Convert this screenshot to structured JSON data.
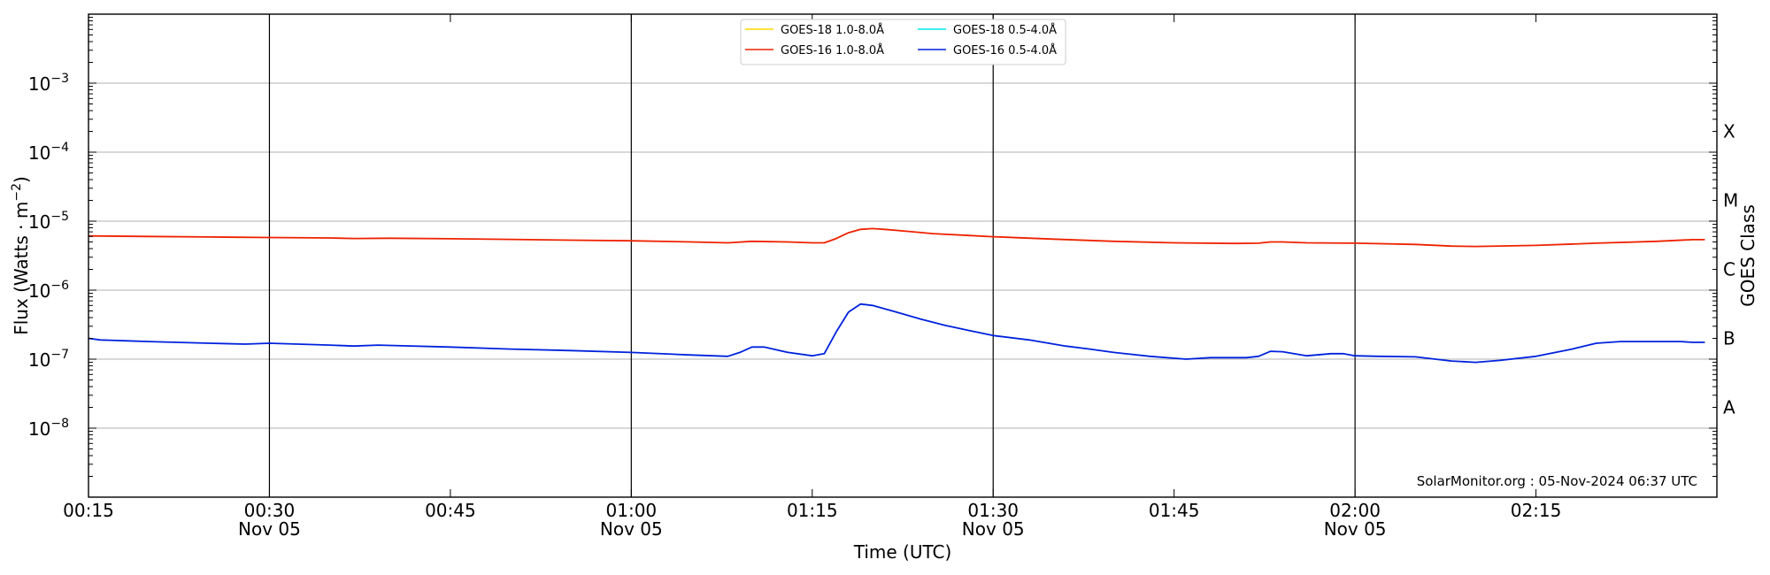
{
  "chart_data": {
    "type": "line",
    "y_scale": "log",
    "ylim": [
      1e-09,
      0.01
    ],
    "xlim": [
      "00:15",
      "02:30"
    ],
    "grid": "horizontal at decades, vertical at half-hours",
    "legend_position": "top-center",
    "xlabel": "Time (UTC)",
    "ylabel_main": "Flux (Watts · m",
    "ylabel_sup": "−2",
    "ylabel_close": ")",
    "right_axis_label": "GOES Class",
    "goes_classes": [
      {
        "label": "X",
        "flux": 0.0002
      },
      {
        "label": "M",
        "flux": 2e-05
      },
      {
        "label": "C",
        "flux": 2e-06
      },
      {
        "label": "B",
        "flux": 2e-07
      },
      {
        "label": "A",
        "flux": 2e-08
      }
    ],
    "y_ticks": [
      {
        "base": "10",
        "exp": "−8",
        "value": 1e-08
      },
      {
        "base": "10",
        "exp": "−7",
        "value": 1e-07
      },
      {
        "base": "10",
        "exp": "−6",
        "value": 1e-06
      },
      {
        "base": "10",
        "exp": "−5",
        "value": 1e-05
      },
      {
        "base": "10",
        "exp": "−4",
        "value": 0.0001
      },
      {
        "base": "10",
        "exp": "−3",
        "value": 0.001
      }
    ],
    "x_ticks": [
      {
        "time": "00:15",
        "label": "00:15",
        "date": ""
      },
      {
        "time": "00:30",
        "label": "00:30",
        "date": "Nov 05"
      },
      {
        "time": "00:45",
        "label": "00:45",
        "date": ""
      },
      {
        "time": "01:00",
        "label": "01:00",
        "date": "Nov 05"
      },
      {
        "time": "01:15",
        "label": "01:15",
        "date": ""
      },
      {
        "time": "01:30",
        "label": "01:30",
        "date": "Nov 05"
      },
      {
        "time": "01:45",
        "label": "01:45",
        "date": ""
      },
      {
        "time": "02:00",
        "label": "02:00",
        "date": "Nov 05"
      },
      {
        "time": "02:15",
        "label": "02:15",
        "date": ""
      }
    ],
    "credit": "SolarMonitor.org : 05-Nov-2024 06:37 UTC",
    "series": [
      {
        "name": "GOES-18 1.0-8.0Å",
        "color": "#ffd700",
        "points": []
      },
      {
        "name": "GOES-18 0.5-4.0Å",
        "color": "#00e5ee",
        "points": []
      },
      {
        "name": "GOES-16 1.0-8.0Å",
        "color": "#ee2200",
        "points": [
          [
            "00:15",
            6.1e-06
          ],
          [
            "00:20",
            6e-06
          ],
          [
            "00:25",
            5.9e-06
          ],
          [
            "00:30",
            5.8e-06
          ],
          [
            "00:35",
            5.7e-06
          ],
          [
            "00:37",
            5.6e-06
          ],
          [
            "00:40",
            5.65e-06
          ],
          [
            "00:45",
            5.55e-06
          ],
          [
            "00:50",
            5.45e-06
          ],
          [
            "00:55",
            5.3e-06
          ],
          [
            "01:00",
            5.2e-06
          ],
          [
            "01:05",
            5e-06
          ],
          [
            "01:08",
            4.85e-06
          ],
          [
            "01:10",
            5.1e-06
          ],
          [
            "01:13",
            5e-06
          ],
          [
            "01:15",
            4.85e-06
          ],
          [
            "01:16",
            4.85e-06
          ],
          [
            "01:17",
            5.6e-06
          ],
          [
            "01:18",
            6.8e-06
          ],
          [
            "01:19",
            7.6e-06
          ],
          [
            "01:20",
            7.8e-06
          ],
          [
            "01:21",
            7.6e-06
          ],
          [
            "01:23",
            7.1e-06
          ],
          [
            "01:25",
            6.6e-06
          ],
          [
            "01:28",
            6.2e-06
          ],
          [
            "01:30",
            5.95e-06
          ],
          [
            "01:35",
            5.5e-06
          ],
          [
            "01:40",
            5.1e-06
          ],
          [
            "01:45",
            4.85e-06
          ],
          [
            "01:50",
            4.75e-06
          ],
          [
            "01:52",
            4.8e-06
          ],
          [
            "01:53",
            5e-06
          ],
          [
            "01:54",
            5e-06
          ],
          [
            "01:56",
            4.85e-06
          ],
          [
            "02:00",
            4.8e-06
          ],
          [
            "02:05",
            4.6e-06
          ],
          [
            "02:08",
            4.35e-06
          ],
          [
            "02:10",
            4.3e-06
          ],
          [
            "02:15",
            4.45e-06
          ],
          [
            "02:20",
            4.8e-06
          ],
          [
            "02:25",
            5.1e-06
          ],
          [
            "02:28",
            5.4e-06
          ],
          [
            "02:29",
            5.4e-06
          ]
        ]
      },
      {
        "name": "GOES-16 0.5-4.0Å",
        "color": "#0022dd",
        "points": [
          [
            "00:15",
            2e-07
          ],
          [
            "00:16",
            1.9e-07
          ],
          [
            "00:18",
            1.85e-07
          ],
          [
            "00:20",
            1.8e-07
          ],
          [
            "00:25",
            1.7e-07
          ],
          [
            "00:28",
            1.65e-07
          ],
          [
            "00:30",
            1.7e-07
          ],
          [
            "00:35",
            1.6e-07
          ],
          [
            "00:37",
            1.55e-07
          ],
          [
            "00:39",
            1.6e-07
          ],
          [
            "00:40",
            1.58e-07
          ],
          [
            "00:45",
            1.5e-07
          ],
          [
            "00:50",
            1.4e-07
          ],
          [
            "00:55",
            1.33e-07
          ],
          [
            "01:00",
            1.25e-07
          ],
          [
            "01:05",
            1.15e-07
          ],
          [
            "01:08",
            1.1e-07
          ],
          [
            "01:09",
            1.25e-07
          ],
          [
            "01:10",
            1.5e-07
          ],
          [
            "01:11",
            1.5e-07
          ],
          [
            "01:13",
            1.25e-07
          ],
          [
            "01:15",
            1.12e-07
          ],
          [
            "01:16",
            1.2e-07
          ],
          [
            "01:17",
            2.5e-07
          ],
          [
            "01:18",
            4.8e-07
          ],
          [
            "01:19",
            6.3e-07
          ],
          [
            "01:20",
            6e-07
          ],
          [
            "01:22",
            4.8e-07
          ],
          [
            "01:24",
            3.8e-07
          ],
          [
            "01:26",
            3.1e-07
          ],
          [
            "01:28",
            2.6e-07
          ],
          [
            "01:30",
            2.2e-07
          ],
          [
            "01:33",
            1.9e-07
          ],
          [
            "01:36",
            1.55e-07
          ],
          [
            "01:38",
            1.4e-07
          ],
          [
            "01:40",
            1.25e-07
          ],
          [
            "01:43",
            1.1e-07
          ],
          [
            "01:46",
            1e-07
          ],
          [
            "01:48",
            1.05e-07
          ],
          [
            "01:51",
            1.05e-07
          ],
          [
            "01:52",
            1.1e-07
          ],
          [
            "01:53",
            1.3e-07
          ],
          [
            "01:54",
            1.28e-07
          ],
          [
            "01:56",
            1.12e-07
          ],
          [
            "01:58",
            1.2e-07
          ],
          [
            "01:59",
            1.2e-07
          ],
          [
            "02:00",
            1.12e-07
          ],
          [
            "02:02",
            1.1e-07
          ],
          [
            "02:05",
            1.08e-07
          ],
          [
            "02:08",
            9.4e-08
          ],
          [
            "02:10",
            9e-08
          ],
          [
            "02:12",
            9.6e-08
          ],
          [
            "02:15",
            1.1e-07
          ],
          [
            "02:18",
            1.4e-07
          ],
          [
            "02:20",
            1.7e-07
          ],
          [
            "02:22",
            1.8e-07
          ],
          [
            "02:25",
            1.8e-07
          ],
          [
            "02:27",
            1.8e-07
          ],
          [
            "02:28",
            1.75e-07
          ],
          [
            "02:29",
            1.75e-07
          ]
        ]
      }
    ]
  }
}
